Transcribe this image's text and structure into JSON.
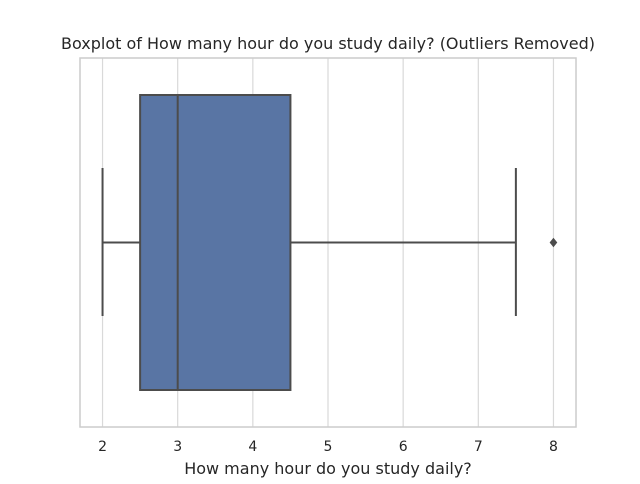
{
  "chart_data": {
    "type": "boxplot",
    "title": "Boxplot of How many hour do you study daily? (Outliers Removed)",
    "xlabel": "How many hour do you study daily?",
    "ylabel": "",
    "orientation": "horizontal",
    "xlim": [
      1.7,
      8.3
    ],
    "xticks": [
      2,
      3,
      4,
      5,
      6,
      7,
      8
    ],
    "tick_labels": [
      "2",
      "3",
      "4",
      "5",
      "6",
      "7",
      "8"
    ],
    "grid": true,
    "box": {
      "whisker_low": 2,
      "q1": 2.5,
      "median": 3,
      "q3": 4.5,
      "whisker_high": 7.5,
      "outliers": [
        8
      ]
    },
    "colors": {
      "box_fill": "#5975a4",
      "line": "#4c4c4c",
      "grid": "#d9d9d9",
      "frame": "#cccccc"
    }
  }
}
